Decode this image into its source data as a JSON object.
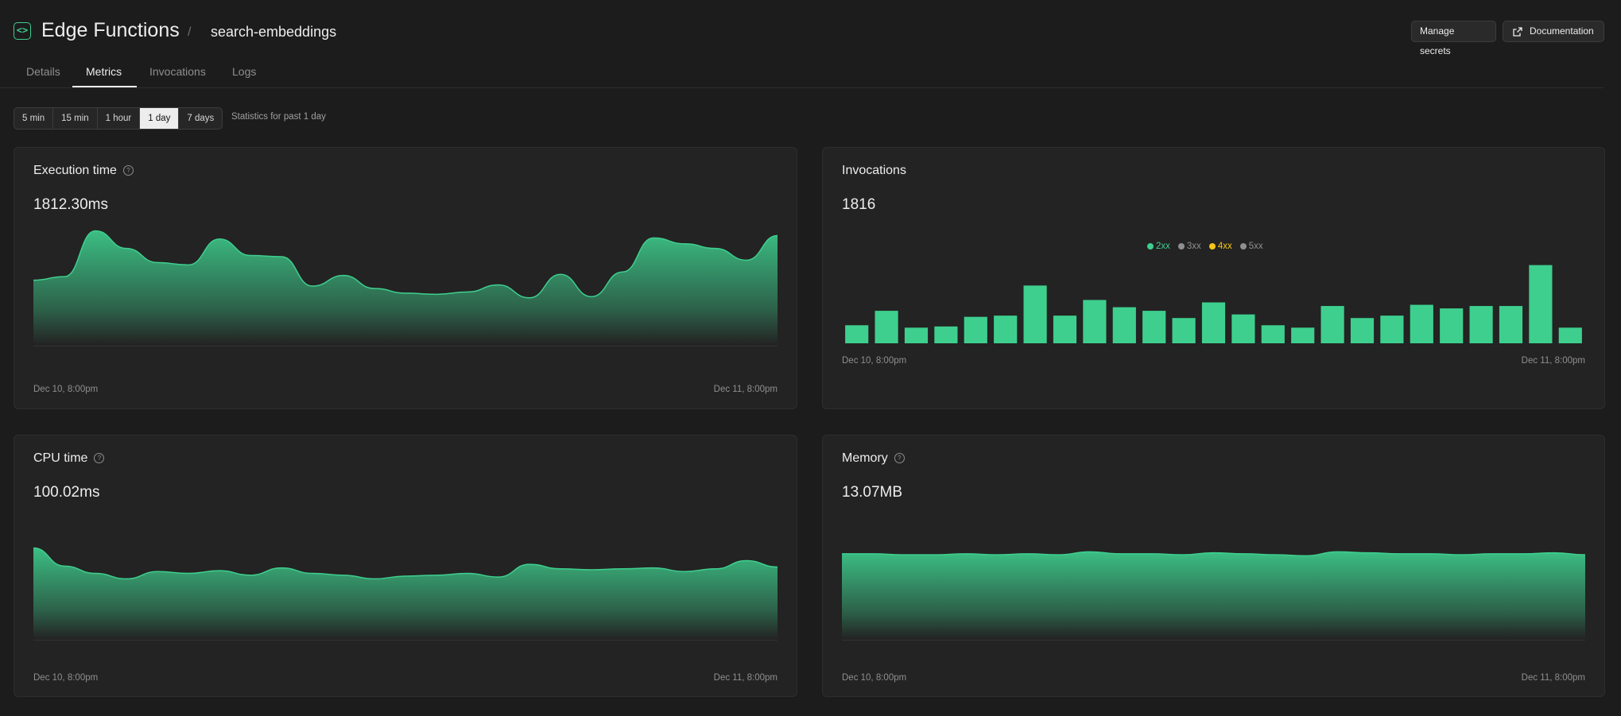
{
  "header": {
    "icon": "code-icon",
    "title": "Edge Functions",
    "separator": "/",
    "function_name": "search-embeddings",
    "manage_secrets_label": "Manage secrets",
    "documentation_label": "Documentation"
  },
  "tabs": [
    {
      "label": "Details"
    },
    {
      "label": "Metrics",
      "active": true
    },
    {
      "label": "Invocations"
    },
    {
      "label": "Logs"
    }
  ],
  "time_range": {
    "options": [
      "5 min",
      "15 min",
      "1 hour",
      "1 day",
      "7 days"
    ],
    "selected": "1 day",
    "note": "Statistics for past 1 day"
  },
  "colors": {
    "accent": "#3ecf8e",
    "warn": "#f5c518",
    "muted": "#8f8f8f"
  },
  "cards": {
    "execution": {
      "title": "Execution time",
      "value": "1812.30ms",
      "x_start": "Dec 10, 8:00pm",
      "x_end": "Dec 11, 8:00pm"
    },
    "invocations": {
      "title": "Invocations",
      "value": "1816",
      "x_start": "Dec 10, 8:00pm",
      "x_end": "Dec 11, 8:00pm",
      "legend": [
        {
          "label": "2xx",
          "color": "#3ecf8e"
        },
        {
          "label": "3xx",
          "color": "#8f8f8f"
        },
        {
          "label": "4xx",
          "color": "#f5c518"
        },
        {
          "label": "5xx",
          "color": "#8f8f8f"
        }
      ]
    },
    "cpu": {
      "title": "CPU time",
      "value": "100.02ms",
      "x_start": "Dec 10, 8:00pm",
      "x_end": "Dec 11, 8:00pm"
    },
    "memory": {
      "title": "Memory",
      "value": "13.07MB",
      "x_start": "Dec 10, 8:00pm",
      "x_end": "Dec 11, 8:00pm"
    }
  },
  "chart_data": [
    {
      "type": "area",
      "name": "execution-time",
      "values": [
        0.55,
        0.58,
        0.97,
        0.82,
        0.7,
        0.68,
        0.9,
        0.76,
        0.75,
        0.5,
        0.59,
        0.48,
        0.44,
        0.43,
        0.45,
        0.51,
        0.4,
        0.6,
        0.41,
        0.62,
        0.91,
        0.86,
        0.82,
        0.72,
        0.93
      ],
      "ylim": [
        0,
        1
      ]
    },
    {
      "type": "bar",
      "name": "invocations",
      "values": [
        15,
        27,
        13,
        14,
        22,
        23,
        48,
        23,
        36,
        30,
        27,
        21,
        34,
        24,
        15,
        13,
        31,
        21,
        23,
        32,
        29,
        31,
        31,
        65,
        13
      ],
      "ylim": [
        0,
        70
      ]
    },
    {
      "type": "area",
      "name": "cpu-time",
      "values": [
        1.0,
        0.8,
        0.72,
        0.66,
        0.74,
        0.72,
        0.75,
        0.7,
        0.78,
        0.72,
        0.7,
        0.66,
        0.69,
        0.7,
        0.72,
        0.68,
        0.82,
        0.77,
        0.76,
        0.77,
        0.78,
        0.74,
        0.77,
        0.86,
        0.79
      ],
      "ylim": [
        0,
        1.1
      ]
    },
    {
      "type": "area",
      "name": "memory",
      "values": [
        0.85,
        0.85,
        0.84,
        0.84,
        0.85,
        0.84,
        0.85,
        0.84,
        0.87,
        0.85,
        0.85,
        0.84,
        0.86,
        0.85,
        0.84,
        0.83,
        0.87,
        0.86,
        0.85,
        0.85,
        0.84,
        0.85,
        0.85,
        0.86,
        0.84
      ],
      "ylim": [
        0,
        1
      ]
    }
  ]
}
